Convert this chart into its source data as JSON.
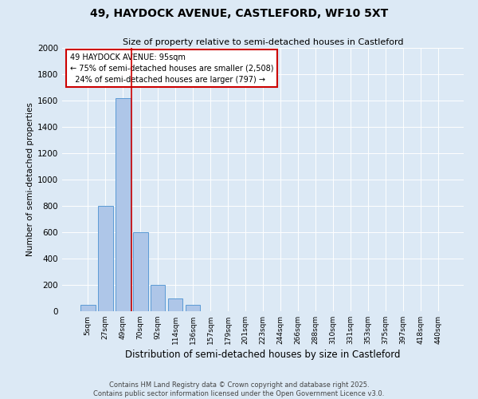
{
  "title": "49, HAYDOCK AVENUE, CASTLEFORD, WF10 5XT",
  "subtitle": "Size of property relative to semi-detached houses in Castleford",
  "xlabel": "Distribution of semi-detached houses by size in Castleford",
  "ylabel": "Number of semi-detached properties",
  "categories": [
    "5sqm",
    "27sqm",
    "49sqm",
    "70sqm",
    "92sqm",
    "114sqm",
    "136sqm",
    "157sqm",
    "179sqm",
    "201sqm",
    "223sqm",
    "244sqm",
    "266sqm",
    "288sqm",
    "310sqm",
    "331sqm",
    "353sqm",
    "375sqm",
    "397sqm",
    "418sqm",
    "440sqm"
  ],
  "values": [
    50,
    800,
    1620,
    600,
    200,
    100,
    50,
    0,
    0,
    0,
    0,
    0,
    0,
    0,
    0,
    0,
    0,
    0,
    0,
    0,
    0
  ],
  "property_size": "95sqm",
  "pct_smaller": 75,
  "n_smaller": 2508,
  "pct_larger": 24,
  "n_larger": 797,
  "bar_color": "#aec6e8",
  "bar_edge_color": "#5b9bd5",
  "property_line_color": "#cc0000",
  "annotation_box_color": "#cc0000",
  "bg_color": "#dce9f5",
  "ylim": [
    0,
    2000
  ],
  "yticks": [
    0,
    200,
    400,
    600,
    800,
    1000,
    1200,
    1400,
    1600,
    1800,
    2000
  ],
  "property_line_x": 2.5,
  "footer1": "Contains HM Land Registry data © Crown copyright and database right 2025.",
  "footer2": "Contains public sector information licensed under the Open Government Licence v3.0."
}
